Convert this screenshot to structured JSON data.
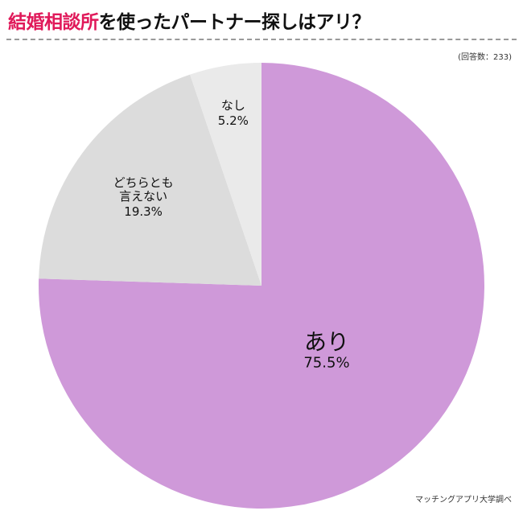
{
  "header": {
    "title_highlight": "結婚相談所",
    "title_rest": "を使ったパートナー探しはアリ？",
    "response_count": "(回答数：233)"
  },
  "footer": {
    "source": "マッチングアプリ大学調べ"
  },
  "chart_data": {
    "type": "pie",
    "categories": [
      "あり",
      "どちらとも言えない",
      "なし"
    ],
    "label_lines": [
      [
        "あり"
      ],
      [
        "どちらとも",
        "言えない"
      ],
      [
        "なし"
      ]
    ],
    "values": [
      75.5,
      19.3,
      5.2
    ],
    "value_labels": [
      "75.5%",
      "19.3%",
      "5.2%"
    ],
    "colors": [
      "#cf99d9",
      "#dcdcdc",
      "#eaeaea"
    ],
    "start": "12 o'clock",
    "direction": "clockwise"
  }
}
